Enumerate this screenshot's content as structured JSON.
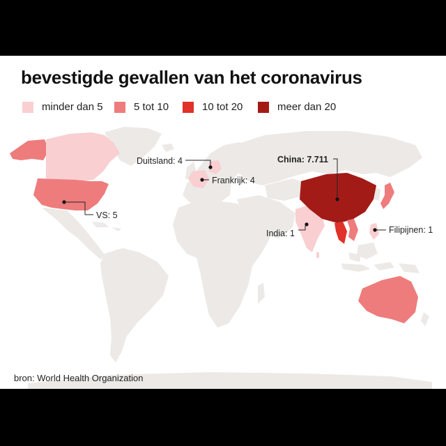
{
  "title": "bevestigde gevallen van het coronavirus",
  "legend": [
    {
      "label": "minder dan 5",
      "color": "#f9cfd1"
    },
    {
      "label": "5 tot 10",
      "color": "#ee7c7c"
    },
    {
      "label": "10 tot 20",
      "color": "#e03228"
    },
    {
      "label": "meer dan 20",
      "color": "#a31b17"
    }
  ],
  "land_color": "#ece9e6",
  "labels": {
    "duitsland": "Duitsland: 4",
    "frankrijk": "Frankrijk: 4",
    "vs": "VS: 5",
    "china": "China: 7.711",
    "india": "India: 1",
    "filipijnen": "Filipijnen: 1"
  },
  "source": "bron: World Health Organization"
}
